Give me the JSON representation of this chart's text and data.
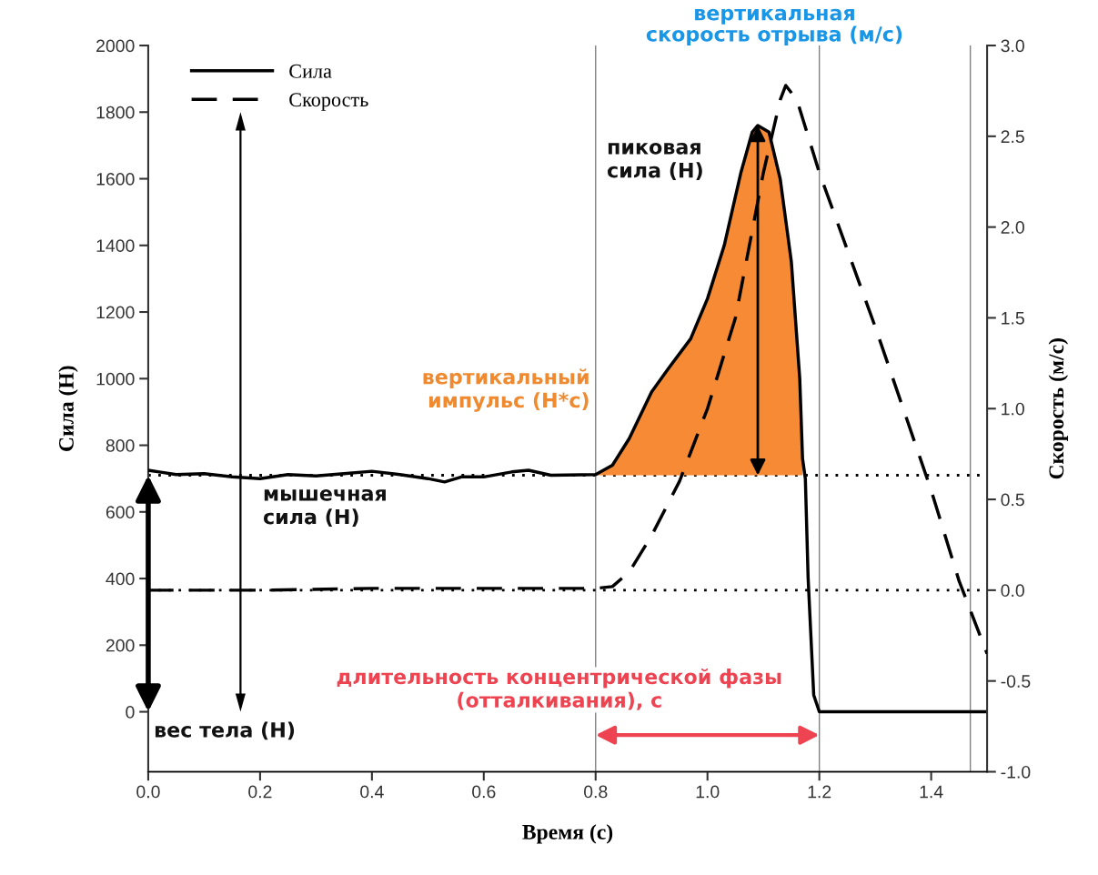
{
  "chart_data": {
    "type": "line",
    "xlabel": "Время (с)",
    "ylabel": "Сила (Н)",
    "y2label": "Скорость (м/с)",
    "xlim": [
      0,
      1.5
    ],
    "xticks": [
      {
        "value": 0,
        "label": "0.0"
      },
      {
        "value": 0.2,
        "label": "0.2"
      },
      {
        "value": 0.4,
        "label": "0.4"
      },
      {
        "value": 0.6,
        "label": "0.6"
      },
      {
        "value": 0.8,
        "label": "0.8"
      },
      {
        "value": 1.0,
        "label": "1.0"
      },
      {
        "value": 1.2,
        "label": "1.2"
      },
      {
        "value": 1.4,
        "label": "1.4"
      }
    ],
    "ylim": [
      -180,
      2000
    ],
    "yticks": [
      0,
      200,
      400,
      600,
      800,
      1000,
      1200,
      1400,
      1600,
      1800,
      2000
    ],
    "y2lim": [
      -1,
      3
    ],
    "y2ticks": [
      {
        "value": -1,
        "label": "-1.0"
      },
      {
        "value": -0.5,
        "label": "-0.5"
      },
      {
        "value": 0,
        "label": "0.0"
      },
      {
        "value": 0.5,
        "label": "0.5"
      },
      {
        "value": 1,
        "label": "1.0"
      },
      {
        "value": 1.5,
        "label": "1.5"
      },
      {
        "value": 2,
        "label": "2.0"
      },
      {
        "value": 2.5,
        "label": "2.5"
      },
      {
        "value": 3,
        "label": "3.0"
      }
    ],
    "grid": false,
    "legend": "top left",
    "marker": "none",
    "series": [
      {
        "name": "Сила",
        "color": "#000000",
        "line_style": "solid",
        "x": [
          0,
          0.02,
          0.05,
          0.1,
          0.15,
          0.2,
          0.25,
          0.3,
          0.35,
          0.4,
          0.45,
          0.5,
          0.53,
          0.56,
          0.6,
          0.65,
          0.68,
          0.72,
          0.8,
          0.83,
          0.86,
          0.9,
          0.93,
          0.97,
          1.0,
          1.03,
          1.06,
          1.08,
          1.09,
          1.11,
          1.13,
          1.15,
          1.165,
          1.17,
          1.175,
          1.18,
          1.19,
          1.2,
          1.5
        ],
        "values": [
          725,
          720,
          712,
          715,
          705,
          700,
          712,
          708,
          715,
          722,
          712,
          700,
          690,
          705,
          705,
          720,
          725,
          710,
          712,
          740,
          820,
          960,
          1030,
          1120,
          1240,
          1400,
          1620,
          1740,
          1760,
          1740,
          1600,
          1350,
          1000,
          760,
          700,
          400,
          50,
          0,
          0
        ]
      },
      {
        "name": "Скорость",
        "color": "#000000",
        "line_style": "dashed",
        "axis": "y2",
        "x": [
          0,
          0.2,
          0.4,
          0.6,
          0.8,
          0.83,
          0.86,
          0.9,
          0.95,
          1.0,
          1.05,
          1.1,
          1.13,
          1.14,
          1.16,
          1.2,
          1.3,
          1.4,
          1.45,
          1.5
        ],
        "values": [
          0,
          0,
          0.01,
          0.01,
          0.01,
          0.02,
          0.1,
          0.3,
          0.6,
          1.0,
          1.5,
          2.3,
          2.7,
          2.78,
          2.7,
          2.3,
          1.45,
          0.55,
          0.05,
          -0.35
        ]
      },
      {
        "type": "area",
        "color": "#f68a35",
        "x": [
          0.8,
          0.83,
          0.86,
          0.9,
          0.93,
          0.97,
          1.0,
          1.03,
          1.06,
          1.08,
          1.09,
          1.11,
          1.13,
          1.15,
          1.165,
          1.17
        ],
        "values": [
          712,
          740,
          820,
          960,
          1030,
          1120,
          1240,
          1400,
          1620,
          1740,
          1760,
          1740,
          1600,
          1350,
          1000,
          760
        ]
      }
    ],
    "ref_lines": [
      {
        "axis": "y",
        "value": 710,
        "line_style": "dotted",
        "color": "#000000"
      },
      {
        "axis": "y2",
        "value": 0,
        "line_style": "dotted",
        "color": "#000000"
      },
      {
        "axis": "x",
        "value": 0.8,
        "line_style": "solid",
        "color": "#808080"
      },
      {
        "axis": "x",
        "value": 1.2,
        "line_style": "solid",
        "color": "#808080"
      },
      {
        "axis": "x",
        "value": 1.47,
        "line_style": "solid",
        "color": "#808080"
      }
    ],
    "annotations": [
      "вертикальная\nскорость отрыва (м/с)",
      "пиковая\nсила (Н)",
      "вертикальный\nимпульс (Н*с)",
      "мышечная\nсила (Н)",
      "вес тела (Н)",
      "длительность концентрической фазы\n(отталкивания), с"
    ]
  }
}
